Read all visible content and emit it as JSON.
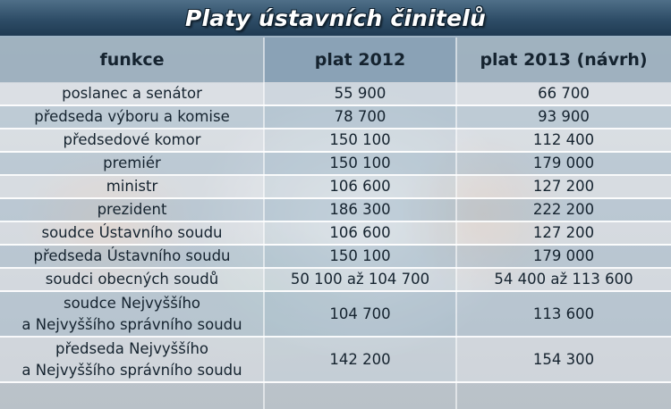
{
  "chart_data": {
    "type": "table",
    "title": "Platy ústavních činitelů",
    "columns": [
      "funkce",
      "plat 2012",
      "plat 2013 (návrh)"
    ],
    "rows": [
      {
        "funkce": "poslanec a senátor",
        "plat_2012": "55 900",
        "plat_2013": "66 700"
      },
      {
        "funkce": "předseda výboru a komise",
        "plat_2012": "78 700",
        "plat_2013": "93 900"
      },
      {
        "funkce": "předsedové komor",
        "plat_2012": "150 100",
        "plat_2013": "112 400"
      },
      {
        "funkce": "premiér",
        "plat_2012": "150 100",
        "plat_2013": "179 000"
      },
      {
        "funkce": "ministr",
        "plat_2012": "106 600",
        "plat_2013": "127 200"
      },
      {
        "funkce": "prezident",
        "plat_2012": "186 300",
        "plat_2013": "222 200"
      },
      {
        "funkce": "soudce Ústavního soudu",
        "plat_2012": "106 600",
        "plat_2013": "127 200"
      },
      {
        "funkce": "předseda Ústavního soudu",
        "plat_2012": "150 100",
        "plat_2013": "179 000"
      },
      {
        "funkce": "soudci obecných soudů",
        "plat_2012": "50 100 až 104 700",
        "plat_2013": "54 400 až 113 600"
      },
      {
        "funkce_lines": [
          "soudce Nejvyššího",
          "a Nejvyššího správního soudu"
        ],
        "plat_2012": "104 700",
        "plat_2013": "113 600"
      },
      {
        "funkce_lines": [
          "předseda Nejvyššího",
          "a Nejvyššího správního soudu"
        ],
        "plat_2012": "142 200",
        "plat_2013": "154 300"
      }
    ]
  },
  "colors": {
    "title_bar": "#2e4d67",
    "header_band": "#96aaba",
    "text": "#15232f",
    "title_text": "#ffffff"
  }
}
